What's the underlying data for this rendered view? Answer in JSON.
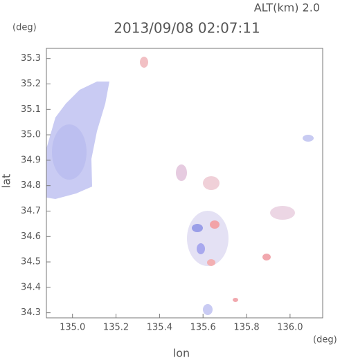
{
  "chart_data": {
    "type": "map",
    "title": "2013/09/08 02:07:11",
    "subtitle": "ALT(km) 2.0",
    "x_label": "lon",
    "y_label": "lat",
    "x_unit": "(deg)",
    "y_unit": "(deg)",
    "xlim": [
      134.88,
      136.15
    ],
    "ylim": [
      34.28,
      35.34
    ],
    "xticks": [
      {
        "value": 135,
        "label": "135.0"
      },
      135.2,
      135.4,
      135.6,
      135.8,
      {
        "value": 136,
        "label": "136.0"
      }
    ],
    "yticks": [
      34.3,
      34.4,
      34.5,
      34.6,
      34.7,
      34.8,
      34.9,
      {
        "value": 35,
        "label": "35.0"
      },
      35.1,
      35.2,
      35.3
    ],
    "grid": false
  }
}
